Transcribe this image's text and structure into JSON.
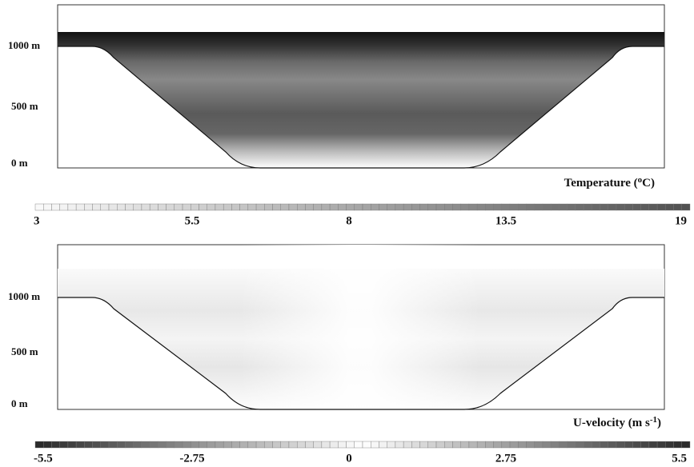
{
  "panels": [
    {
      "y_labels": [
        "1000 m",
        "500 m",
        "0 m"
      ],
      "colorbar": {
        "label_parts": [
          "Temperature (",
          "o",
          "C)"
        ],
        "ticks": [
          "3",
          "5.5",
          "8",
          "13.5",
          "19"
        ]
      }
    },
    {
      "y_labels": [
        "1000 m",
        "500 m",
        "0 m"
      ],
      "colorbar": {
        "label_parts": [
          "U-velocity (m s",
          "-1",
          ")"
        ],
        "ticks": [
          "-5.5",
          "-2.75",
          "0",
          "2.75",
          "5.5"
        ]
      }
    }
  ]
}
